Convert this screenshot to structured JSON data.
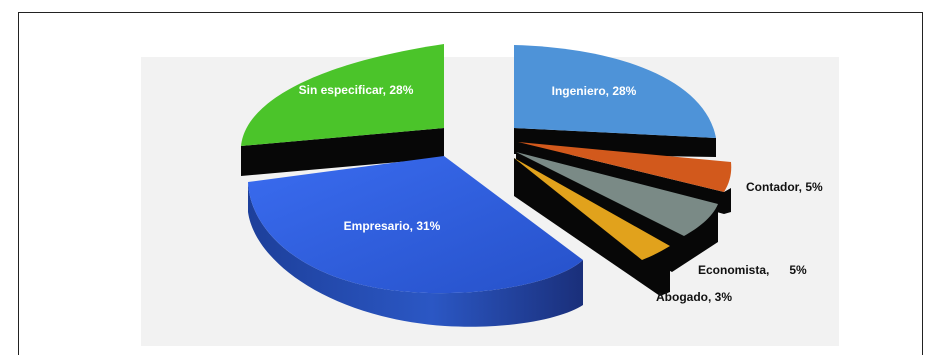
{
  "chart_data": {
    "type": "pie",
    "style": "3d-exploded",
    "legend": "none",
    "slices": [
      {
        "label": "Ingeniero, 28%",
        "category": "Ingeniero",
        "value": 28,
        "color": "#4e93d8"
      },
      {
        "label": "Contador, 5%",
        "category": "Contador",
        "value": 5,
        "color": "#d2591c"
      },
      {
        "label": "Economista,      5%",
        "category": "Economista",
        "value": 5,
        "color": "#7a8a86"
      },
      {
        "label": "Abogado, 3%",
        "category": "Abogado",
        "value": 3,
        "color": "#e1a21c"
      },
      {
        "label": "Empresario, 31%",
        "category": "Empresario",
        "value": 31,
        "color": "#2e5fd6"
      },
      {
        "label": "Sin especificar, 28%",
        "category": "Sin especificar",
        "value": 28,
        "color": "#4bc42a"
      }
    ]
  }
}
